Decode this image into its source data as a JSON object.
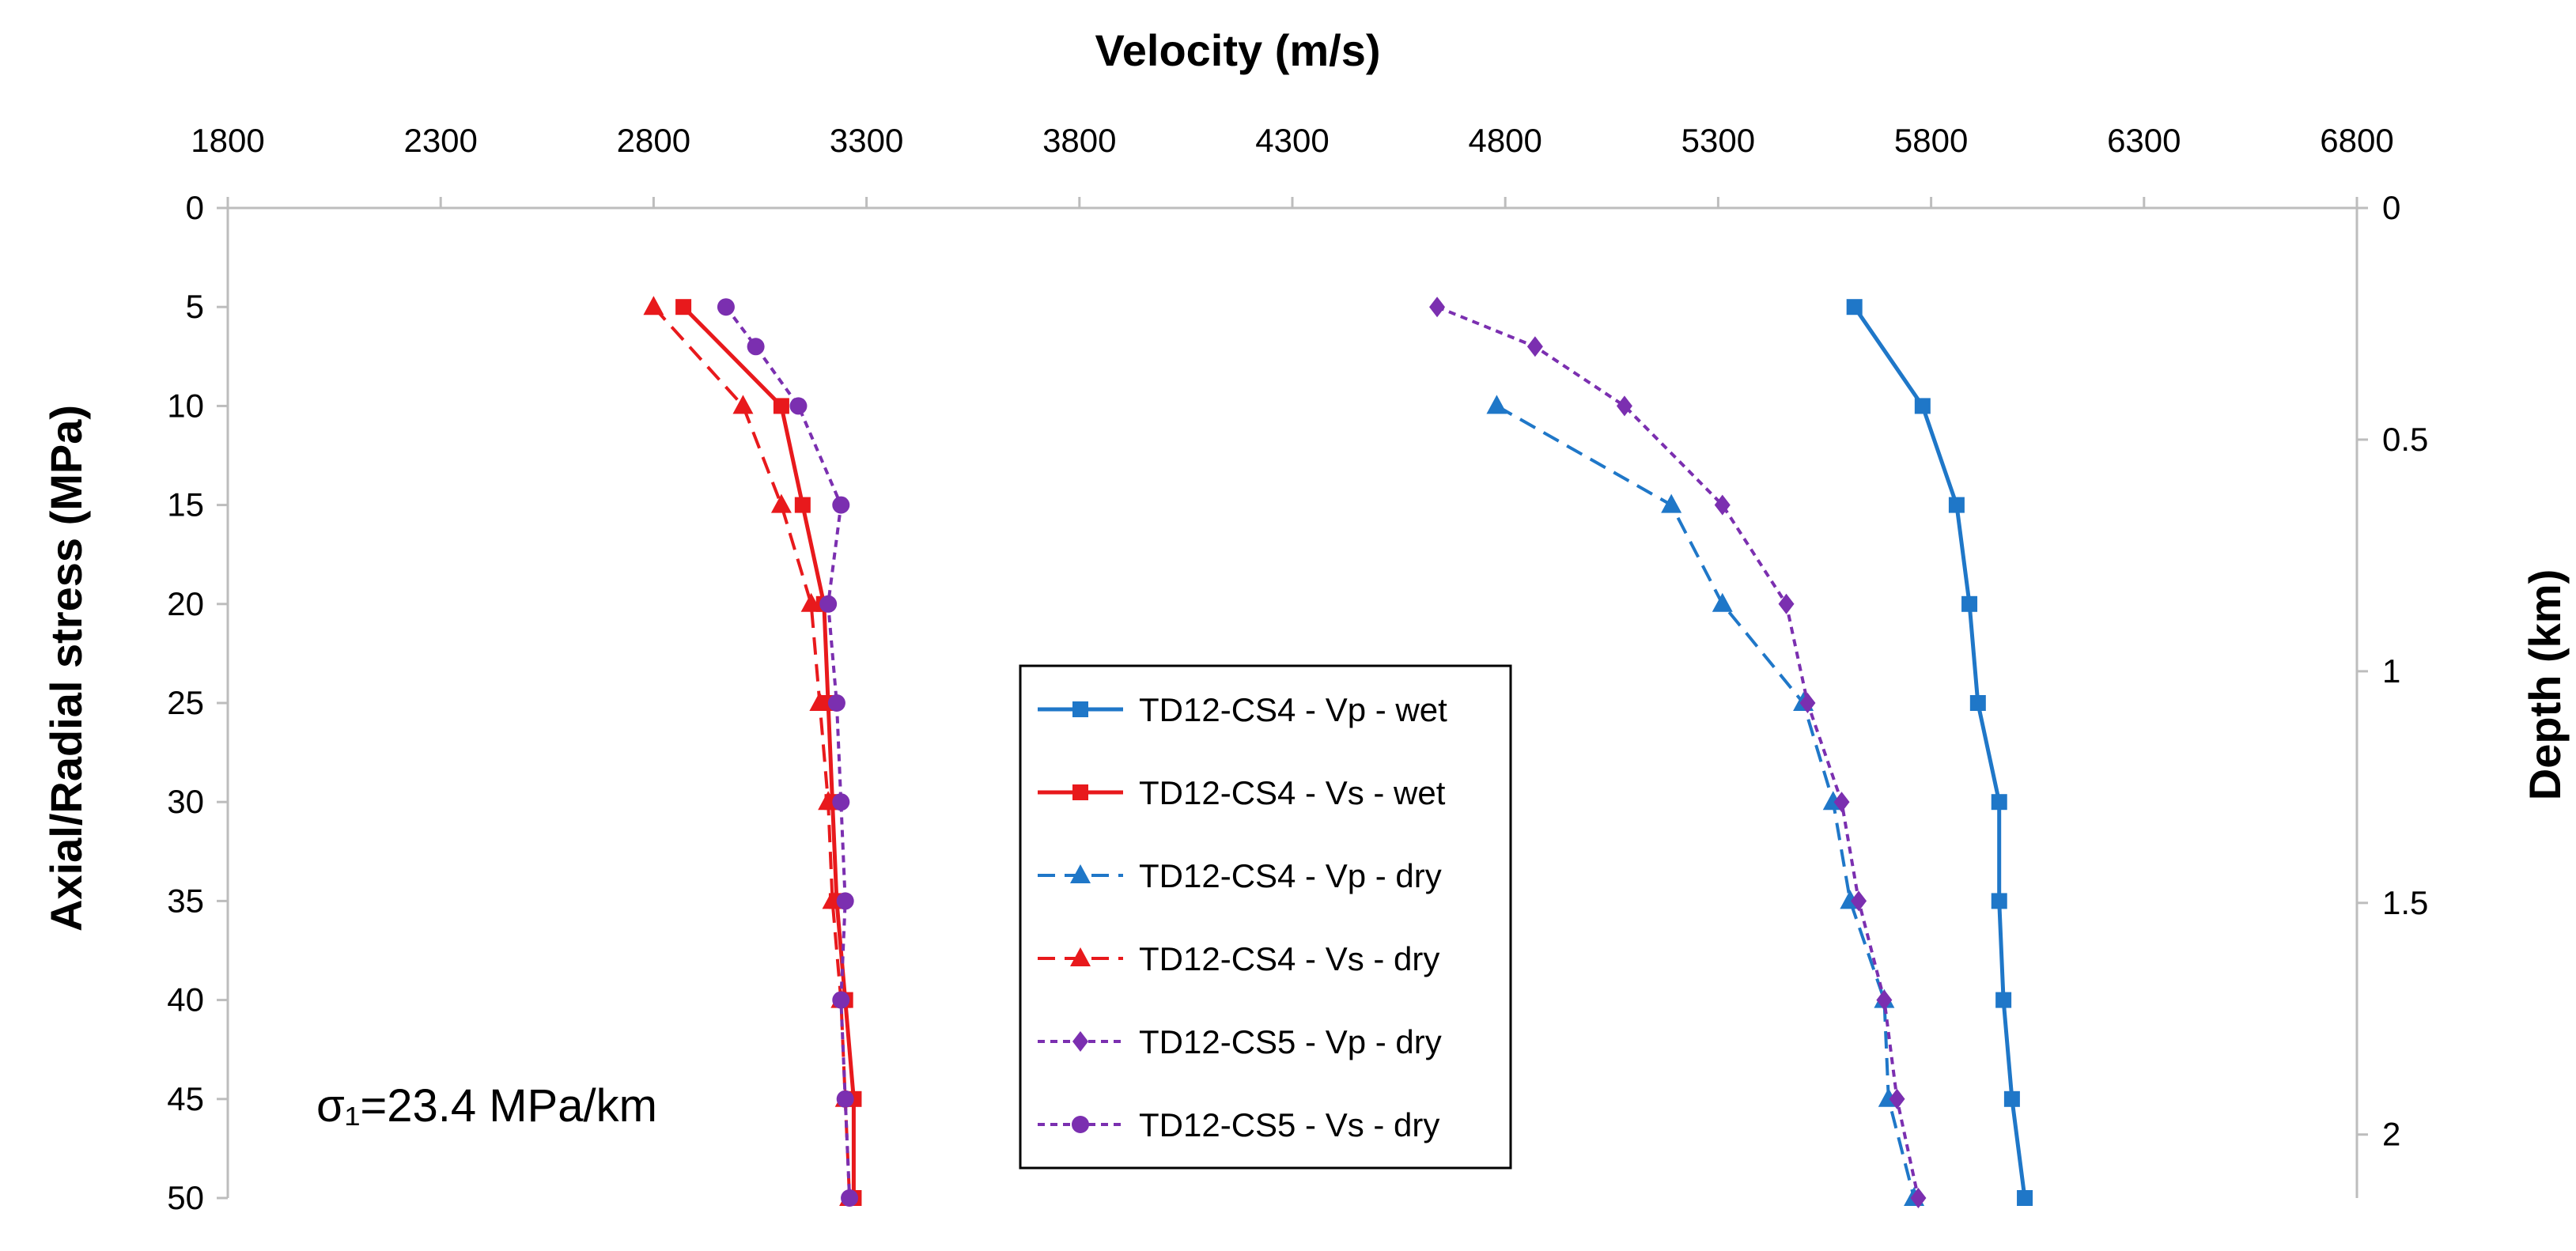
{
  "chart_data": {
    "type": "line",
    "title": "",
    "xlabel": "Velocity (m/s)",
    "ylabel": "Axial/Radial stress (MPa)",
    "y2label": "Depth (km)",
    "xlim": [
      1800,
      6800
    ],
    "ylim": [
      0,
      50
    ],
    "y2lim": [
      0,
      2.137
    ],
    "x_axis_position": "top",
    "y_inverted": true,
    "grid": false,
    "legend_position": "center",
    "xticks": [
      "1800",
      "2300",
      "2800",
      "3300",
      "3800",
      "4300",
      "4800",
      "5300",
      "5800",
      "6300",
      "6800"
    ],
    "xtick_values": [
      1800,
      2300,
      2800,
      3300,
      3800,
      4300,
      4800,
      5300,
      5800,
      6300,
      6800
    ],
    "yticks": [
      "0",
      "5",
      "10",
      "15",
      "20",
      "25",
      "30",
      "35",
      "40",
      "45",
      "50"
    ],
    "ytick_values": [
      0,
      5,
      10,
      15,
      20,
      25,
      30,
      35,
      40,
      45,
      50
    ],
    "y2ticks": [
      "0",
      "0.5",
      "1",
      "1.5",
      "2"
    ],
    "y2tick_values": [
      0,
      0.5,
      1,
      1.5,
      2
    ],
    "annotation": "σ₁=23.4 MPa/km",
    "series": [
      {
        "name": "TD12-CS4 - Vp - wet",
        "color": "#1f77c8",
        "dash": "solid",
        "marker": "square",
        "points": [
          [
            5620,
            5
          ],
          [
            5780,
            10
          ],
          [
            5860,
            15
          ],
          [
            5890,
            20
          ],
          [
            5910,
            25
          ],
          [
            5960,
            30
          ],
          [
            5960,
            35
          ],
          [
            5970,
            40
          ],
          [
            5990,
            45
          ],
          [
            6020,
            50
          ]
        ]
      },
      {
        "name": "TD12-CS4 - Vs - wet",
        "color": "#e8191c",
        "dash": "solid",
        "marker": "square",
        "points": [
          [
            2870,
            5
          ],
          [
            3100,
            10
          ],
          [
            3150,
            15
          ],
          [
            3200,
            20
          ],
          [
            3210,
            25
          ],
          [
            3220,
            30
          ],
          [
            3230,
            35
          ],
          [
            3250,
            40
          ],
          [
            3270,
            45
          ],
          [
            3270,
            50
          ]
        ]
      },
      {
        "name": "TD12-CS4 - Vp - dry",
        "color": "#1f77c8",
        "dash": "dashed",
        "marker": "triangle",
        "points": [
          [
            4780,
            10
          ],
          [
            5190,
            15
          ],
          [
            5310,
            20
          ],
          [
            5500,
            25
          ],
          [
            5570,
            30
          ],
          [
            5610,
            35
          ],
          [
            5690,
            40
          ],
          [
            5700,
            45
          ],
          [
            5760,
            50
          ]
        ]
      },
      {
        "name": "TD12-CS4 - Vs - dry",
        "color": "#e8191c",
        "dash": "dashed",
        "marker": "triangle",
        "points": [
          [
            2800,
            5
          ],
          [
            3010,
            10
          ],
          [
            3100,
            15
          ],
          [
            3170,
            20
          ],
          [
            3190,
            25
          ],
          [
            3210,
            30
          ],
          [
            3220,
            35
          ],
          [
            3240,
            40
          ],
          [
            3250,
            45
          ],
          [
            3260,
            50
          ]
        ]
      },
      {
        "name": "TD12-CS5 - Vp - dry",
        "color": "#7b2fb0",
        "dash": "dotted",
        "marker": "diamond",
        "points": [
          [
            4640,
            5
          ],
          [
            4870,
            7
          ],
          [
            5080,
            10
          ],
          [
            5310,
            15
          ],
          [
            5460,
            20
          ],
          [
            5510,
            25
          ],
          [
            5590,
            30
          ],
          [
            5630,
            35
          ],
          [
            5690,
            40
          ],
          [
            5720,
            45
          ],
          [
            5770,
            50
          ]
        ]
      },
      {
        "name": "TD12-CS5 - Vs - dry",
        "color": "#7b2fb0",
        "dash": "dotted",
        "marker": "circle",
        "points": [
          [
            2970,
            5
          ],
          [
            3040,
            7
          ],
          [
            3140,
            10
          ],
          [
            3240,
            15
          ],
          [
            3210,
            20
          ],
          [
            3230,
            25
          ],
          [
            3240,
            30
          ],
          [
            3250,
            35
          ],
          [
            3240,
            40
          ],
          [
            3250,
            45
          ],
          [
            3260,
            50
          ]
        ]
      }
    ]
  }
}
